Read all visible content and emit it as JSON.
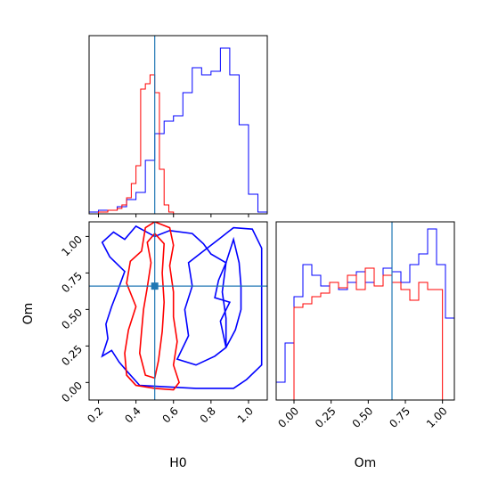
{
  "colors": {
    "sample_a": "#0000ff",
    "sample_b": "#ff0000",
    "truth": "#1f77b4",
    "frame": "#000000"
  },
  "chart_data": [
    {
      "panel": "H0 marginal",
      "type": "histogram",
      "xlabel": "",
      "ylabel": "",
      "xlim": [
        0.15,
        1.1
      ],
      "ylim": [
        0,
        1.0
      ],
      "yticks_shown": false,
      "xticks": [
        0.2,
        0.4,
        0.6,
        0.8,
        1.0
      ],
      "xtick_labels_shown": false,
      "truth_x": 0.5,
      "series": [
        {
          "color": "blue",
          "bin_edges": [
            0.15,
            0.2,
            0.25,
            0.3,
            0.35,
            0.4,
            0.45,
            0.5,
            0.55,
            0.6,
            0.65,
            0.7,
            0.75,
            0.8,
            0.85,
            0.9,
            0.95,
            1.0,
            1.05,
            1.1
          ],
          "counts": [
            0.01,
            0.02,
            0.02,
            0.04,
            0.08,
            0.12,
            0.3,
            0.45,
            0.52,
            0.55,
            0.68,
            0.82,
            0.78,
            0.8,
            0.93,
            0.78,
            0.5,
            0.11,
            0.01
          ]
        },
        {
          "color": "red",
          "bin_edges": [
            0.2,
            0.225,
            0.25,
            0.275,
            0.3,
            0.325,
            0.35,
            0.375,
            0.4,
            0.425,
            0.45,
            0.475,
            0.5,
            0.525,
            0.55,
            0.575,
            0.6
          ],
          "counts": [
            0.01,
            0.01,
            0.02,
            0.02,
            0.03,
            0.05,
            0.09,
            0.17,
            0.27,
            0.7,
            0.73,
            0.78,
            0.68,
            0.25,
            0.05,
            0.01
          ]
        }
      ]
    },
    {
      "panel": "H0 vs Om joint",
      "type": "contour",
      "xlabel": "H0",
      "ylabel": "Om",
      "xlim": [
        0.15,
        1.1
      ],
      "ylim": [
        -0.12,
        1.1
      ],
      "xticks": [
        0.2,
        0.4,
        0.6,
        0.8,
        1.0
      ],
      "xtick_labels": [
        "0.2",
        "0.4",
        "0.6",
        "0.8",
        "1.0"
      ],
      "yticks": [
        0.0,
        0.25,
        0.5,
        0.75,
        1.0
      ],
      "ytick_labels": [
        "0.00",
        "0.25",
        "0.50",
        "0.75",
        "1.00"
      ],
      "truth": [
        0.5,
        0.66
      ],
      "series": [
        {
          "color": "blue",
          "contours": [
            [
              [
                0.22,
                0.18
              ],
              [
                0.27,
                0.22
              ],
              [
                0.31,
                0.14
              ],
              [
                0.35,
                0.08
              ],
              [
                0.42,
                -0.02
              ],
              [
                0.56,
                -0.03
              ],
              [
                0.72,
                -0.04
              ],
              [
                0.92,
                -0.04
              ],
              [
                0.99,
                0.02
              ],
              [
                1.07,
                0.12
              ],
              [
                1.07,
                0.92
              ],
              [
                1.02,
                1.05
              ],
              [
                0.92,
                1.06
              ],
              [
                0.84,
                0.98
              ],
              [
                0.76,
                0.9
              ],
              [
                0.68,
                0.82
              ],
              [
                0.7,
                0.66
              ],
              [
                0.66,
                0.5
              ],
              [
                0.68,
                0.32
              ],
              [
                0.62,
                0.16
              ],
              [
                0.72,
                0.12
              ],
              [
                0.82,
                0.18
              ],
              [
                0.88,
                0.24
              ],
              [
                0.85,
                0.42
              ],
              [
                0.9,
                0.55
              ],
              [
                0.82,
                0.58
              ],
              [
                0.84,
                0.7
              ],
              [
                0.88,
                0.82
              ],
              [
                0.8,
                0.88
              ],
              [
                0.76,
                0.95
              ],
              [
                0.7,
                1.02
              ],
              [
                0.58,
                1.04
              ],
              [
                0.5,
                1.0
              ],
              [
                0.4,
                1.07
              ],
              [
                0.34,
                0.98
              ],
              [
                0.28,
                1.03
              ],
              [
                0.22,
                0.96
              ],
              [
                0.26,
                0.86
              ],
              [
                0.34,
                0.76
              ],
              [
                0.3,
                0.62
              ],
              [
                0.27,
                0.52
              ],
              [
                0.24,
                0.4
              ],
              [
                0.25,
                0.3
              ],
              [
                0.22,
                0.18
              ]
            ],
            [
              [
                0.88,
                0.24
              ],
              [
                0.93,
                0.36
              ],
              [
                0.96,
                0.5
              ],
              [
                0.96,
                0.66
              ],
              [
                0.95,
                0.82
              ],
              [
                0.92,
                0.98
              ],
              [
                0.88,
                0.82
              ],
              [
                0.86,
                0.62
              ],
              [
                0.88,
                0.44
              ],
              [
                0.88,
                0.24
              ]
            ]
          ]
        },
        {
          "color": "red",
          "contours": [
            [
              [
                0.4,
                -0.02
              ],
              [
                0.5,
                -0.04
              ],
              [
                0.6,
                -0.05
              ],
              [
                0.63,
                0.0
              ],
              [
                0.6,
                0.12
              ],
              [
                0.62,
                0.28
              ],
              [
                0.6,
                0.45
              ],
              [
                0.6,
                0.62
              ],
              [
                0.58,
                0.8
              ],
              [
                0.6,
                0.94
              ],
              [
                0.58,
                1.06
              ],
              [
                0.5,
                1.1
              ],
              [
                0.45,
                1.06
              ],
              [
                0.43,
                0.9
              ],
              [
                0.37,
                0.83
              ],
              [
                0.35,
                0.68
              ],
              [
                0.4,
                0.52
              ],
              [
                0.36,
                0.36
              ],
              [
                0.34,
                0.2
              ],
              [
                0.35,
                0.05
              ],
              [
                0.4,
                -0.02
              ]
            ],
            [
              [
                0.45,
                0.05
              ],
              [
                0.5,
                0.03
              ],
              [
                0.52,
                0.15
              ],
              [
                0.54,
                0.35
              ],
              [
                0.55,
                0.55
              ],
              [
                0.54,
                0.75
              ],
              [
                0.55,
                0.95
              ],
              [
                0.5,
                1.02
              ],
              [
                0.46,
                0.96
              ],
              [
                0.48,
                0.82
              ],
              [
                0.46,
                0.65
              ],
              [
                0.44,
                0.5
              ],
              [
                0.43,
                0.35
              ],
              [
                0.42,
                0.2
              ],
              [
                0.45,
                0.05
              ]
            ]
          ]
        }
      ]
    },
    {
      "panel": "Om marginal",
      "type": "histogram",
      "xlabel": "Om",
      "ylabel": "",
      "xlim": [
        -0.12,
        1.08
      ],
      "ylim": [
        0,
        1.0
      ],
      "yticks_shown": false,
      "xticks": [
        0.0,
        0.25,
        0.5,
        0.75,
        1.0
      ],
      "xtick_labels": [
        "0.00",
        "0.25",
        "0.50",
        "0.75",
        "1.00"
      ],
      "truth_x": 0.66,
      "series": [
        {
          "color": "blue",
          "bin_edges": [
            -0.12,
            -0.06,
            0.0,
            0.06,
            0.12,
            0.18,
            0.24,
            0.3,
            0.36,
            0.42,
            0.48,
            0.54,
            0.6,
            0.66,
            0.72,
            0.78,
            0.84,
            0.9,
            0.96,
            1.02,
            1.08
          ],
          "counts": [
            0.1,
            0.32,
            0.58,
            0.76,
            0.7,
            0.64,
            0.66,
            0.62,
            0.66,
            0.72,
            0.66,
            0.64,
            0.74,
            0.72,
            0.66,
            0.76,
            0.82,
            0.96,
            0.76,
            0.46
          ]
        },
        {
          "color": "red",
          "bin_edges": [
            0.0,
            0.06,
            0.12,
            0.18,
            0.24,
            0.3,
            0.36,
            0.42,
            0.48,
            0.54,
            0.6,
            0.66,
            0.72,
            0.78,
            0.84,
            0.9,
            0.96,
            1.0
          ],
          "counts": [
            0.52,
            0.54,
            0.58,
            0.6,
            0.66,
            0.63,
            0.7,
            0.62,
            0.74,
            0.64,
            0.7,
            0.66,
            0.62,
            0.56,
            0.66,
            0.62,
            0.62
          ]
        }
      ]
    }
  ]
}
